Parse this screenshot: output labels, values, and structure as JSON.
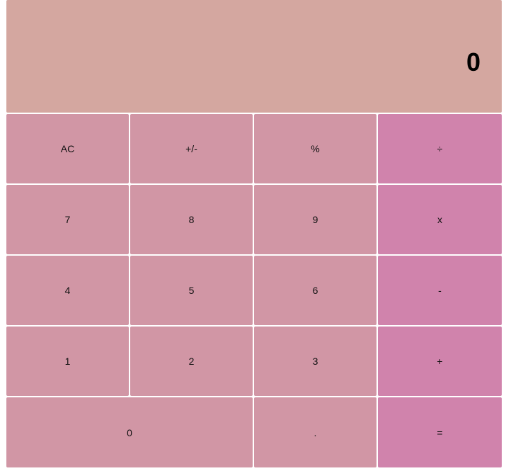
{
  "display": {
    "value": "0"
  },
  "keys": {
    "clear": "AC",
    "sign": "+/-",
    "percent": "%",
    "divide": "÷",
    "seven": "7",
    "eight": "8",
    "nine": "9",
    "multiply": "x",
    "four": "4",
    "five": "5",
    "six": "6",
    "subtract": "-",
    "one": "1",
    "two": "2",
    "three": "3",
    "add": "+",
    "zero": "0",
    "decimal": ".",
    "equals": "="
  },
  "colors": {
    "display_background": "#d4a7a0",
    "key_background": "#d196a5",
    "operator_background": "#d083ac"
  }
}
